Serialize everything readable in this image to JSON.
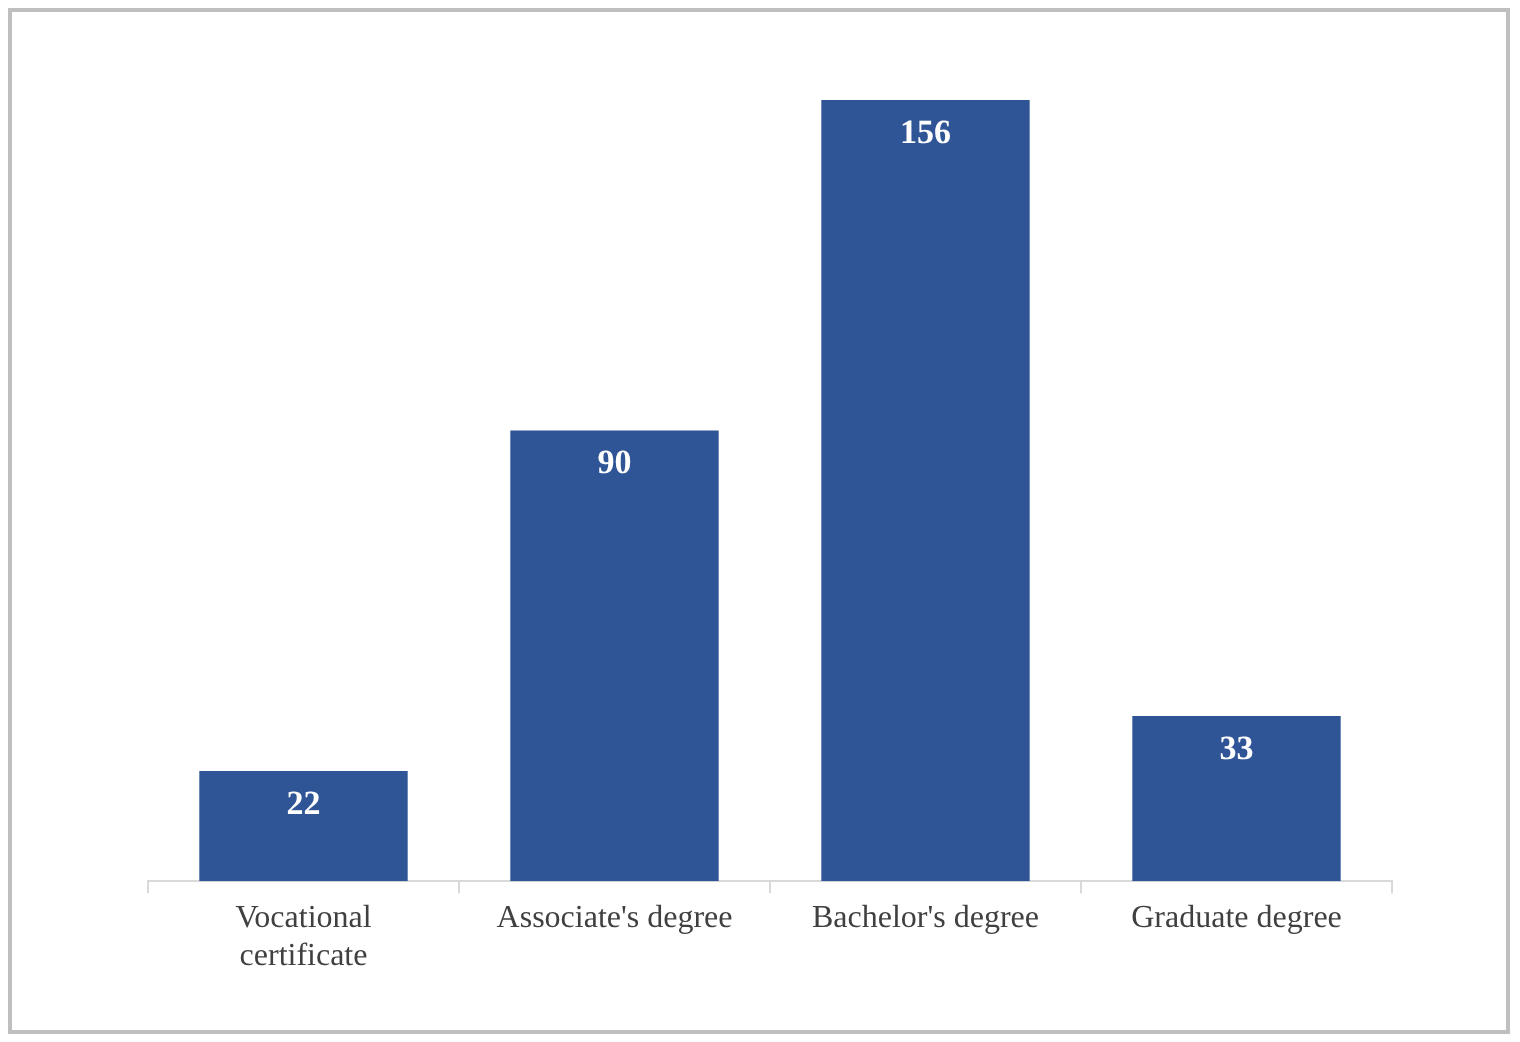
{
  "chart_data": {
    "type": "bar",
    "categories": [
      "Vocational certificate",
      "Associate's degree",
      "Bachelor's degree",
      "Graduate degree"
    ],
    "values": [
      22,
      90,
      156,
      33
    ],
    "color": "#2f5597",
    "data_labels": true,
    "grid": false,
    "legend": false
  }
}
